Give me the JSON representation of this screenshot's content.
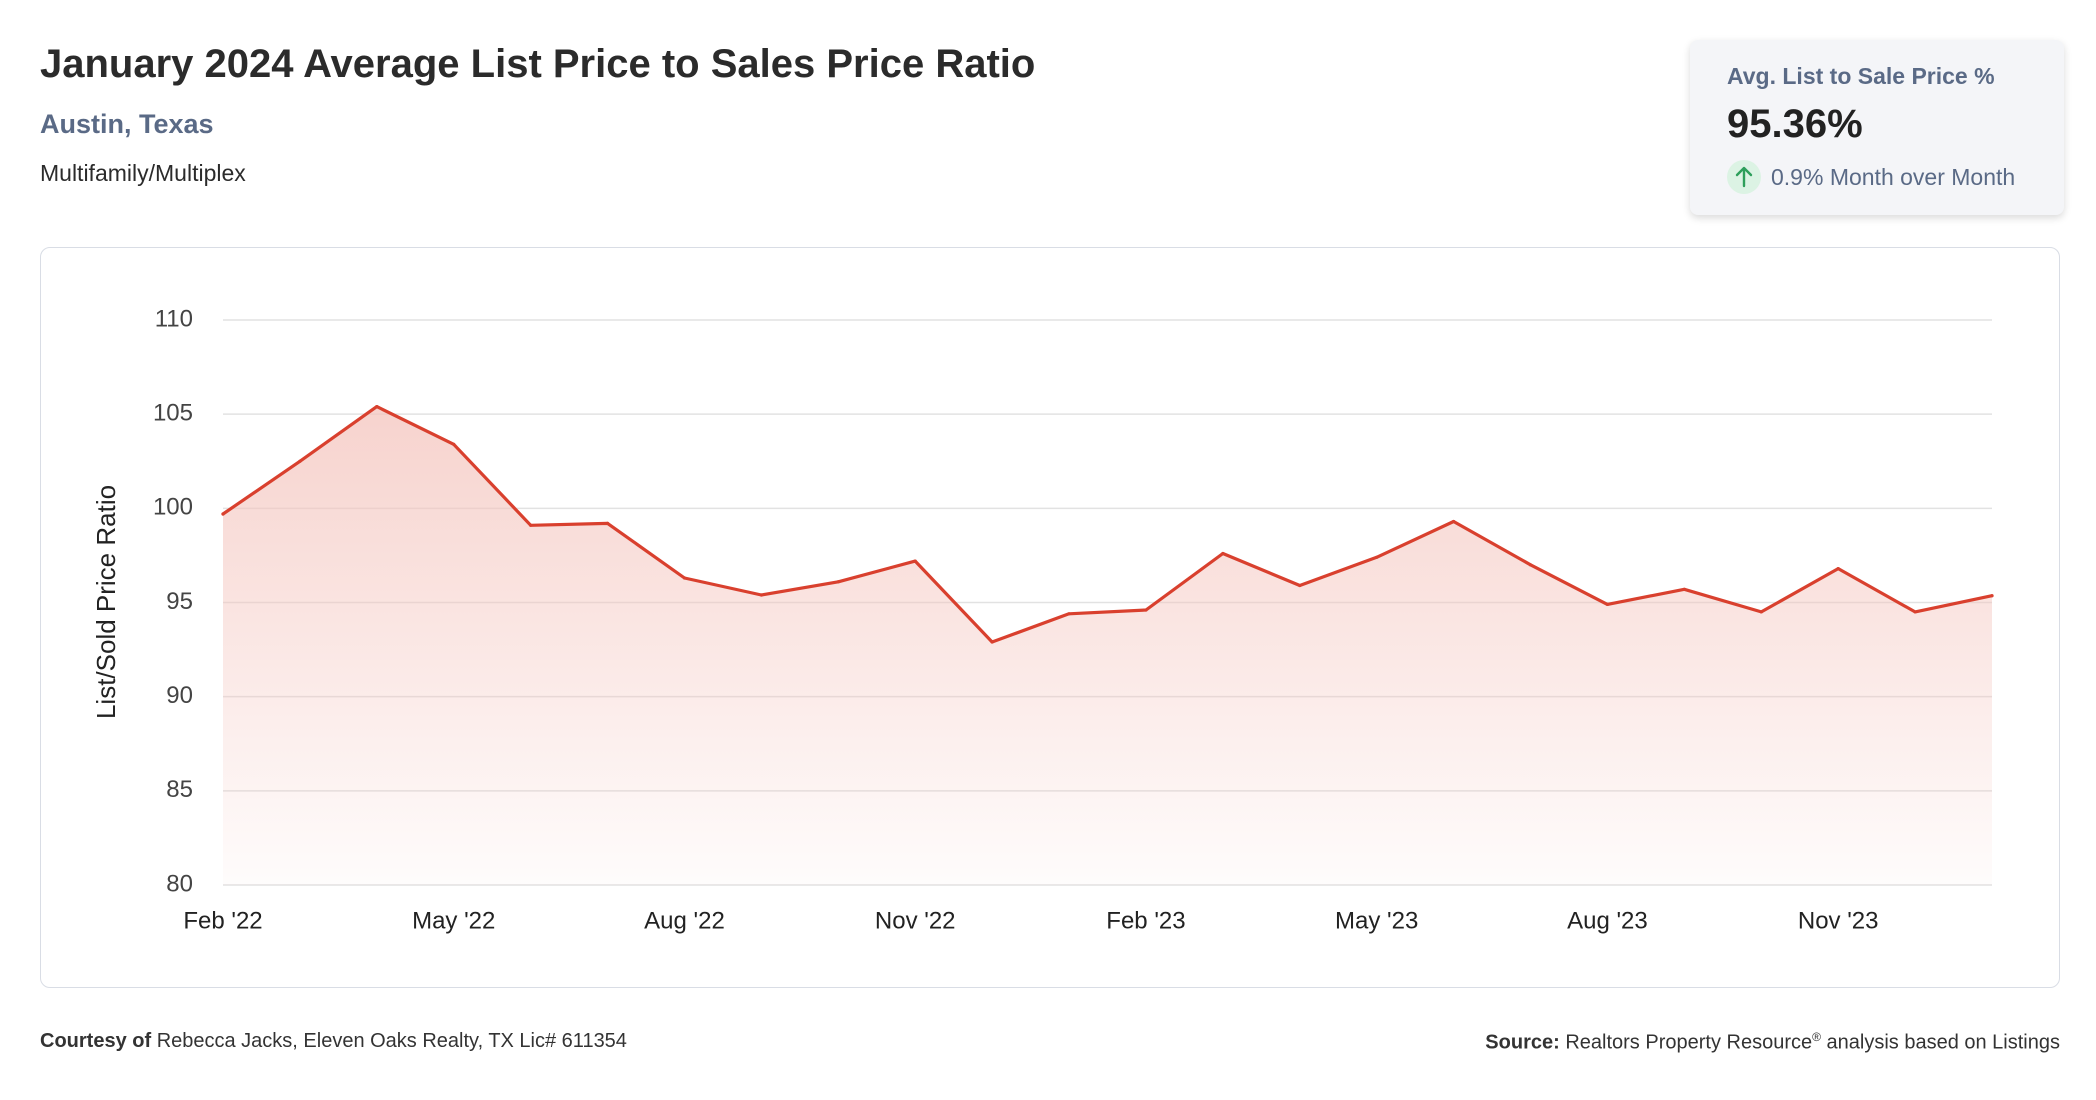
{
  "header": {
    "title": "January 2024 Average List Price to Sales Price Ratio",
    "location": "Austin, Texas",
    "category": "Multifamily/Multiplex"
  },
  "stat_card": {
    "label": "Avg. List to Sale Price %",
    "value": "95.36%",
    "change": "0.9% Month over Month",
    "change_icon": "arrow-up-icon"
  },
  "footer": {
    "courtesy_label": "Courtesy of",
    "courtesy_text": "Rebecca Jacks, Eleven Oaks Realty, TX Lic# 611354",
    "source_label": "Source:",
    "source_name": "Realtors Property Resource",
    "source_mark": "®",
    "source_text": "analysis based on Listings"
  },
  "colors": {
    "line": "#d9402e",
    "area_top": "#f4c4bd",
    "grid": "#e2e2e2",
    "accent_text": "#5a6a86",
    "up_icon_fill": "#dcf3e4",
    "up_icon_stroke": "#2e9f5b"
  },
  "chart_data": {
    "type": "area",
    "ylabel": "List/Sold Price Ratio",
    "xlabel": "",
    "ylim": [
      80,
      110
    ],
    "yticks": [
      80,
      85,
      90,
      95,
      100,
      105,
      110
    ],
    "grid": true,
    "x": [
      "Feb '22",
      "Mar '22",
      "Apr '22",
      "May '22",
      "Jun '22",
      "Jul '22",
      "Aug '22",
      "Sep '22",
      "Oct '22",
      "Nov '22",
      "Dec '22",
      "Jan '23",
      "Feb '23",
      "Mar '23",
      "Apr '23",
      "May '23",
      "Jun '23",
      "Jul '23",
      "Aug '23",
      "Sep '23",
      "Oct '23",
      "Nov '23",
      "Dec '23",
      "Jan '24"
    ],
    "xtick_labels": [
      "Feb '22",
      "May '22",
      "Aug '22",
      "Nov '22",
      "Feb '23",
      "May '23",
      "Aug '23",
      "Nov '23"
    ],
    "values": [
      99.7,
      102.5,
      105.4,
      103.4,
      99.1,
      99.2,
      96.3,
      95.4,
      96.1,
      97.2,
      92.9,
      94.4,
      94.6,
      97.6,
      95.9,
      97.4,
      99.3,
      97.0,
      94.9,
      95.7,
      94.5,
      96.8,
      94.5,
      95.36
    ]
  }
}
